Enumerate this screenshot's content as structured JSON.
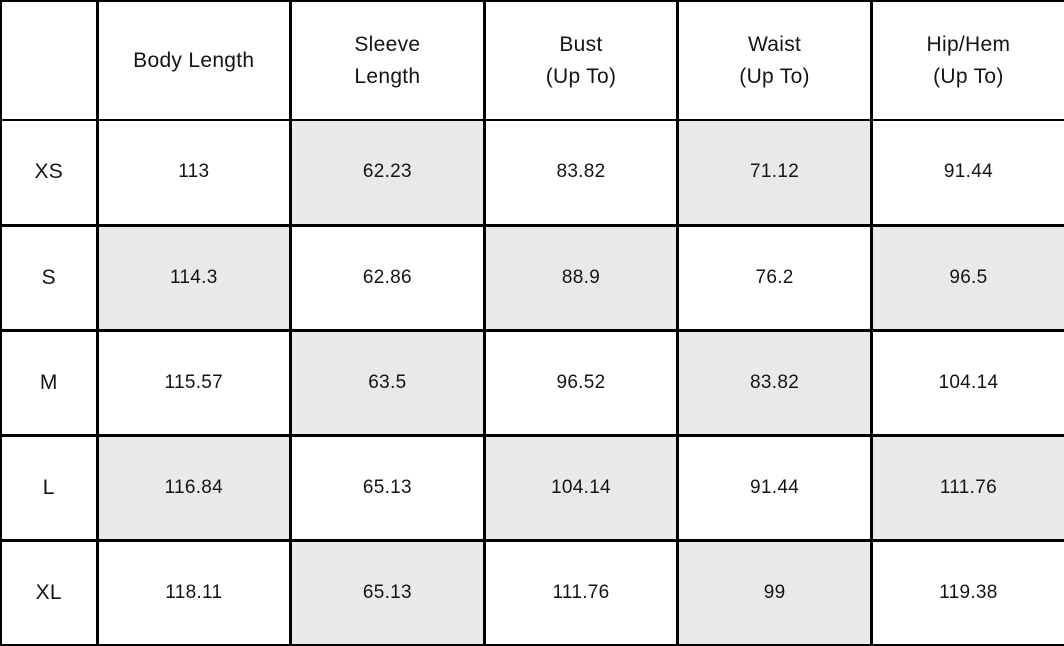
{
  "table": {
    "header_display": [
      "",
      "Body Length",
      "Sleeve\nLength",
      "Bust\n(Up To)",
      "Waist\n(Up To)",
      "Hip/Hem\n(Up To)"
    ],
    "colors": {
      "shaded_cell": "#e9e9e9",
      "border": "#000000",
      "text": "#141414",
      "background": "#ffffff"
    },
    "shading_pattern": "checkerboard-alternating-cells"
  },
  "chart_data": {
    "type": "table",
    "title": "",
    "columns": [
      "",
      "Body Length",
      "Sleeve Length",
      "Bust (Up To)",
      "Waist (Up To)",
      "Hip/Hem (Up To)"
    ],
    "rows_labels": [
      "XS",
      "S",
      "M",
      "L",
      "XL"
    ],
    "rows": [
      [
        113,
        62.23,
        83.82,
        71.12,
        91.44
      ],
      [
        114.3,
        62.86,
        88.9,
        76.2,
        96.5
      ],
      [
        115.57,
        63.5,
        96.52,
        83.82,
        104.14
      ],
      [
        116.84,
        65.13,
        104.14,
        91.44,
        111.76
      ],
      [
        118.11,
        65.13,
        111.76,
        99,
        119.38
      ]
    ]
  }
}
